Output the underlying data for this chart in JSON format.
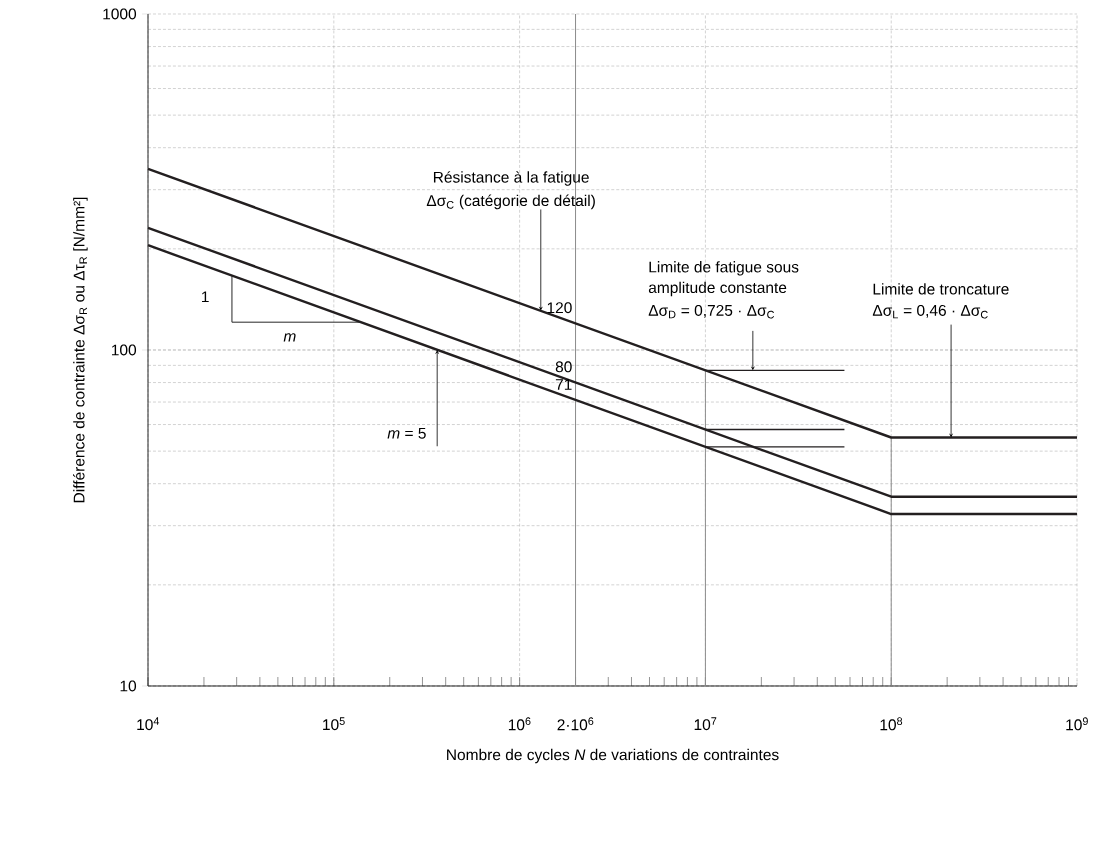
{
  "chart_data": {
    "type": "line",
    "xlabel": "Nombre de cycles *N* de variations de contraintes",
    "ylabel": "Différence de contrainte Δσ$_{R}$ ou Δτ$_{R}$ [N/mm²]",
    "log": "xy",
    "grid": true,
    "xlim": [
      10000,
      1000000000
    ],
    "ylim": [
      10,
      1000
    ],
    "xticks": [
      {
        "value": 10000,
        "label": "10$^{4}$"
      },
      {
        "value": 100000,
        "label": "10$^{5}$"
      },
      {
        "value": 1000000,
        "label": "10$^{6}$"
      },
      {
        "value": 2000000,
        "label": "2·10$^{6}$"
      },
      {
        "value": 10000000,
        "label": "10$^{7}$"
      },
      {
        "value": 100000000,
        "label": "10$^{8}$"
      },
      {
        "value": 1000000000,
        "label": "10$^{9}$"
      }
    ],
    "yticks": [
      10,
      100,
      1000
    ],
    "series": [
      {
        "color": "#231f20",
        "x": [
          10000,
          100000000,
          1000000000
        ],
        "values": [
          346,
          54.9,
          54.9
        ]
      },
      {
        "color": "#231f20",
        "x": [
          10000,
          100000000,
          1000000000
        ],
        "values": [
          231,
          36.6,
          36.6
        ]
      },
      {
        "color": "#231f20",
        "x": [
          10000,
          100000000,
          1000000000
        ],
        "values": [
          205,
          32.5,
          32.5
        ]
      },
      {
        "color": "#231f20",
        "x": [
          10000000,
          56000000
        ],
        "values": [
          87,
          87
        ]
      },
      {
        "color": "#231f20",
        "x": [
          10000000,
          56000000
        ],
        "values": [
          58,
          58
        ]
      },
      {
        "color": "#231f20",
        "x": [
          10000000,
          56000000
        ],
        "values": [
          51.5,
          51.5
        ]
      }
    ],
    "ref_lines": [
      {
        "axis": "x",
        "value": 2000000,
        "color": "#8c8c8c"
      },
      {
        "axis": "x",
        "value": 10000000,
        "color": "#8c8c8c"
      },
      {
        "axis": "x",
        "value": 100000000,
        "color": "#8c8c8c"
      }
    ],
    "annotations": [
      "Résistance à la fatigue",
      {
        "text": "Δσ$_{C}$ (catégorie de détail)",
        "x": 1300000,
        "y": 131
      },
      "Limite de fatigue sous",
      "amplitude constante",
      {
        "text": "Δσ$_{D}$ = 0,725 · Δσ$_{C}$",
        "x": 18000000,
        "y": 87
      },
      "Limite de troncature",
      {
        "text": "Δσ$_{L}$ = 0,46 · Δσ$_{C}$",
        "x": 210000000,
        "y": 54.9
      },
      {
        "text": "120",
        "x": 2000000,
        "y": 120
      },
      {
        "text": "80",
        "x": 2000000,
        "y": 80
      },
      {
        "text": "71",
        "x": 2000000,
        "y": 71
      },
      {
        "text": "*m* = 5",
        "x": 360000,
        "y": 100
      },
      "1",
      "*m*"
    ]
  }
}
